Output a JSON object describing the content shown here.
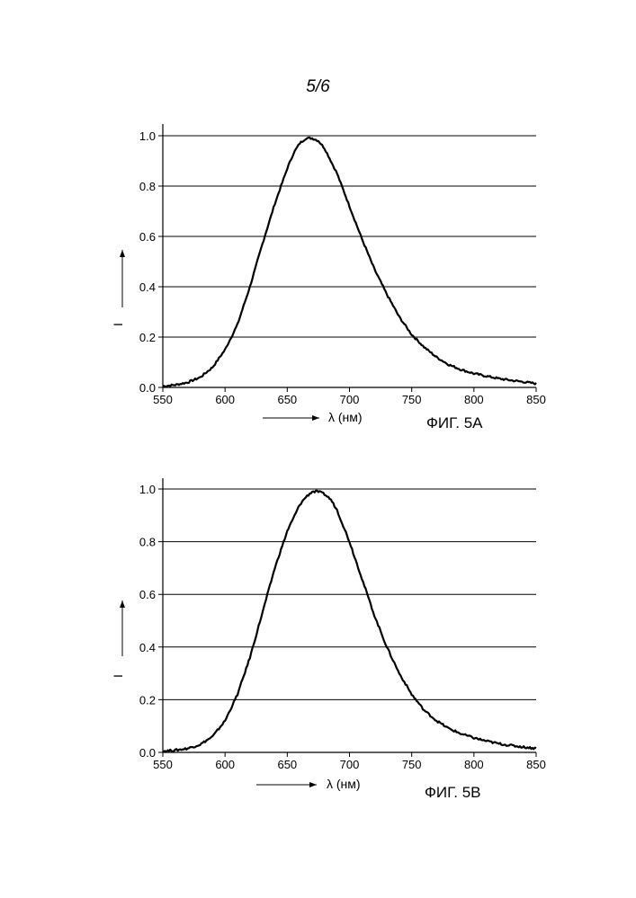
{
  "page": {
    "number": "5/6"
  },
  "chart_data": [
    {
      "type": "line",
      "figure_label": "ФИГ. 5А",
      "xlabel": "λ (нм)",
      "ylabel": "I",
      "xlim": [
        550,
        850
      ],
      "ylim": [
        0.0,
        1.0
      ],
      "x_ticks": [
        "550",
        "600",
        "650",
        "700",
        "750",
        "800",
        "850"
      ],
      "y_ticks": [
        "0.0",
        "0.2",
        "0.4",
        "0.6",
        "0.8",
        "1.0"
      ],
      "grid": "horizontal",
      "series": [
        {
          "x": [
            550,
            560,
            570,
            580,
            590,
            600,
            610,
            620,
            630,
            640,
            650,
            655,
            660,
            665,
            670,
            675,
            680,
            690,
            700,
            710,
            720,
            730,
            740,
            750,
            760,
            770,
            780,
            790,
            800,
            810,
            820,
            830,
            840,
            850
          ],
          "values": [
            0.005,
            0.01,
            0.02,
            0.04,
            0.08,
            0.15,
            0.25,
            0.4,
            0.57,
            0.73,
            0.87,
            0.93,
            0.97,
            0.99,
            0.99,
            0.98,
            0.95,
            0.85,
            0.72,
            0.59,
            0.47,
            0.37,
            0.28,
            0.21,
            0.16,
            0.12,
            0.09,
            0.07,
            0.055,
            0.045,
            0.035,
            0.028,
            0.022,
            0.015
          ]
        }
      ]
    },
    {
      "type": "line",
      "figure_label": "ФИГ. 5В",
      "xlabel": "λ (нм)",
      "ylabel": "I",
      "xlim": [
        550,
        850
      ],
      "ylim": [
        0.0,
        1.0
      ],
      "x_ticks": [
        "550",
        "600",
        "650",
        "700",
        "750",
        "800",
        "850"
      ],
      "y_ticks": [
        "0.0",
        "0.2",
        "0.4",
        "0.6",
        "0.8",
        "1.0"
      ],
      "grid": "horizontal",
      "series": [
        {
          "x": [
            550,
            560,
            570,
            580,
            590,
            600,
            610,
            620,
            630,
            640,
            650,
            660,
            665,
            670,
            675,
            680,
            685,
            690,
            700,
            710,
            720,
            730,
            740,
            750,
            760,
            770,
            780,
            790,
            800,
            810,
            820,
            830,
            840,
            850
          ],
          "values": [
            0.005,
            0.008,
            0.015,
            0.03,
            0.06,
            0.12,
            0.22,
            0.36,
            0.53,
            0.7,
            0.84,
            0.94,
            0.97,
            0.99,
            0.99,
            0.98,
            0.96,
            0.92,
            0.8,
            0.66,
            0.52,
            0.4,
            0.3,
            0.22,
            0.16,
            0.12,
            0.09,
            0.07,
            0.055,
            0.043,
            0.033,
            0.026,
            0.02,
            0.015
          ]
        }
      ]
    }
  ]
}
